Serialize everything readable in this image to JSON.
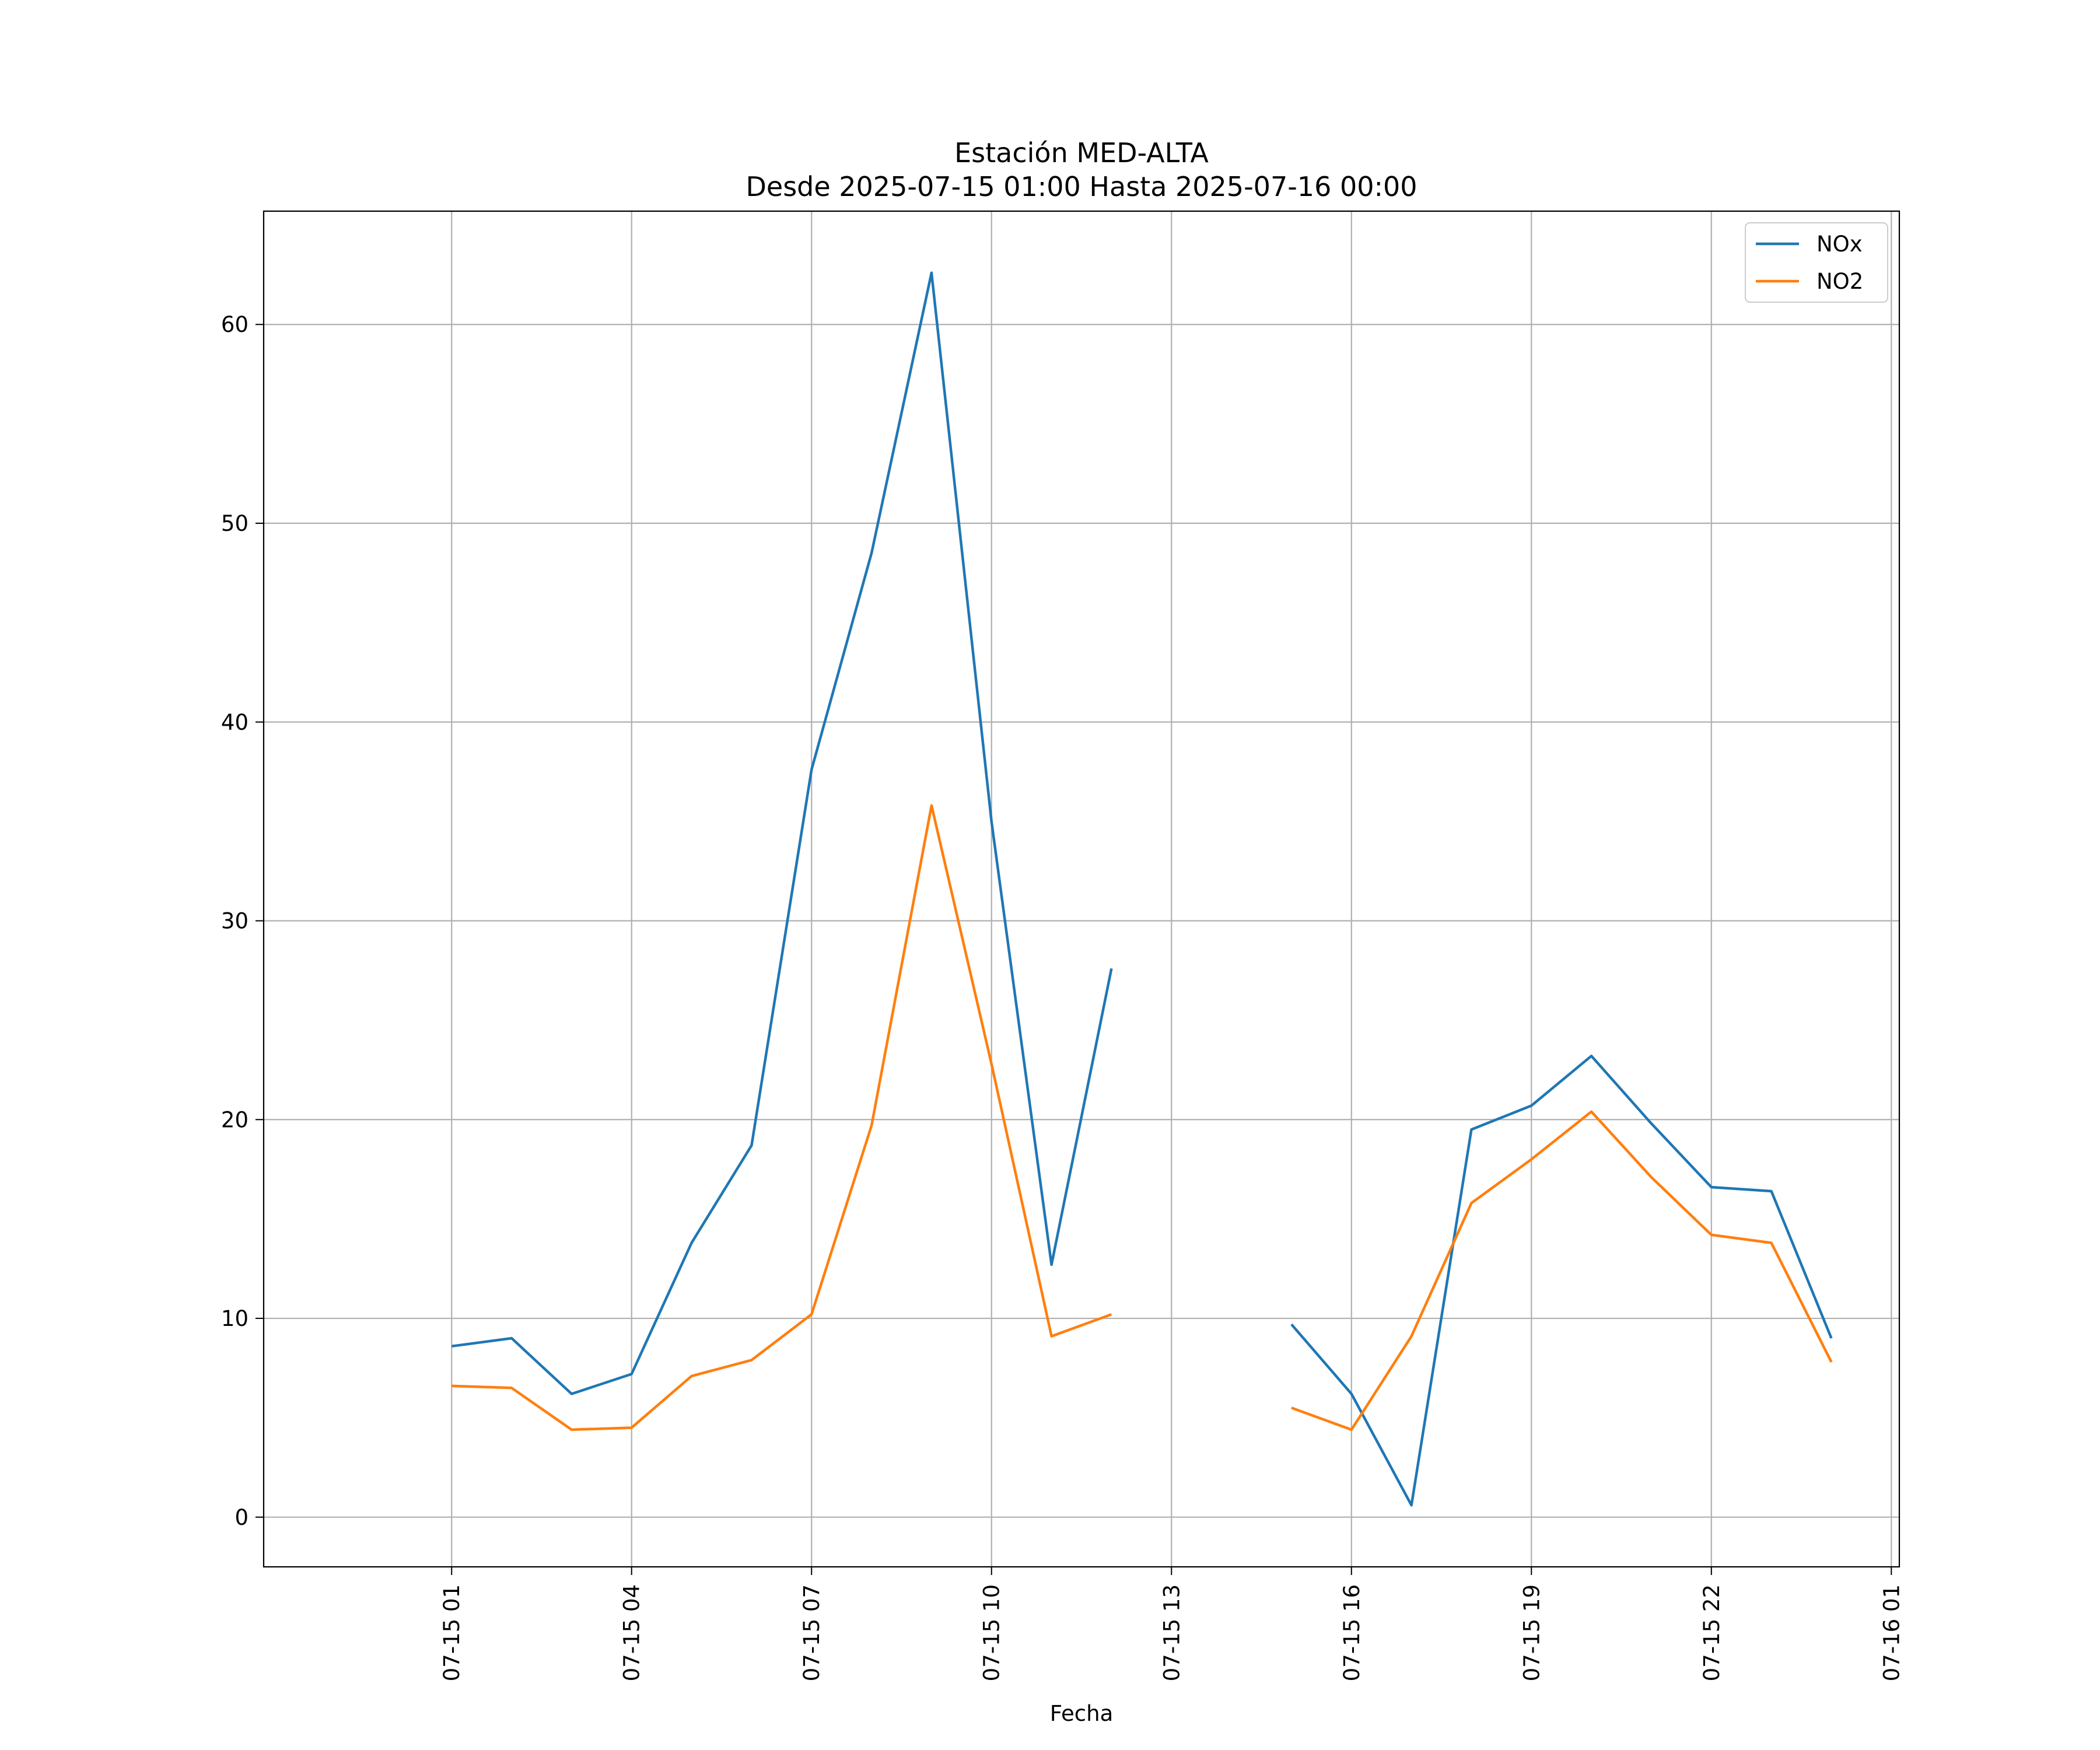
{
  "chart_data": {
    "type": "line",
    "title": "Estación MED-ALTA",
    "subtitle": "Desde 2025-07-15 01:00 Hasta 2025-07-16 00:00",
    "xlabel": "Fecha",
    "ylabel": "",
    "ylim": [
      -2.5,
      65.7
    ],
    "xlim": [
      "2025-07-14 21:52",
      "2025-07-16 01:08"
    ],
    "x_ticks": [
      "07-15 01",
      "07-15 04",
      "07-15 07",
      "07-15 10",
      "07-15 13",
      "07-15 16",
      "07-15 19",
      "07-15 22",
      "07-16 01"
    ],
    "x_tick_times": [
      "2025-07-15 01:00",
      "2025-07-15 04:00",
      "2025-07-15 07:00",
      "2025-07-15 10:00",
      "2025-07-15 13:00",
      "2025-07-15 16:00",
      "2025-07-15 19:00",
      "2025-07-15 22:00",
      "2025-07-16 01:00"
    ],
    "y_ticks": [
      0,
      10,
      20,
      30,
      40,
      50,
      60
    ],
    "grid": true,
    "legend": "top-right",
    "x": [
      "2025-07-15 01:00",
      "2025-07-15 02:00",
      "2025-07-15 03:00",
      "2025-07-15 04:00",
      "2025-07-15 05:00",
      "2025-07-15 06:00",
      "2025-07-15 07:00",
      "2025-07-15 08:00",
      "2025-07-15 09:00",
      "2025-07-15 10:00",
      "2025-07-15 11:00",
      "2025-07-15 12:00",
      "2025-07-15 13:00",
      "2025-07-15 14:00",
      "2025-07-15 15:00",
      "2025-07-15 16:00",
      "2025-07-15 17:00",
      "2025-07-15 18:00",
      "2025-07-15 19:00",
      "2025-07-15 20:00",
      "2025-07-15 21:00",
      "2025-07-15 22:00",
      "2025-07-15 23:00",
      "2025-07-16 00:00"
    ],
    "series": [
      {
        "name": "NOx",
        "color": "#1f77b4",
        "values": [
          8.6,
          9.0,
          6.2,
          7.2,
          13.8,
          18.7,
          37.6,
          48.5,
          62.6,
          35.0,
          12.7,
          27.6,
          null,
          null,
          9.7,
          6.2,
          0.6,
          19.5,
          20.7,
          23.2,
          19.8,
          16.6,
          16.4,
          9.0
        ]
      },
      {
        "name": "NO2",
        "color": "#ff7f0e",
        "values": [
          6.6,
          6.5,
          4.4,
          4.5,
          7.1,
          7.9,
          10.2,
          19.7,
          35.8,
          22.8,
          9.1,
          10.2,
          null,
          null,
          5.5,
          4.4,
          9.1,
          15.8,
          18.0,
          20.4,
          17.1,
          14.2,
          13.8,
          7.8
        ]
      }
    ]
  }
}
